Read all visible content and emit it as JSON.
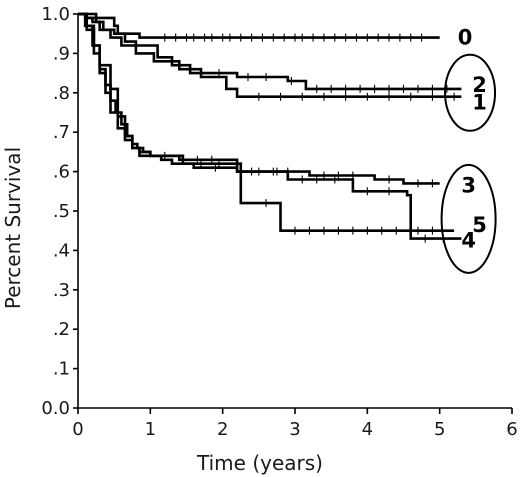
{
  "chart_data": {
    "type": "line",
    "title": "",
    "xlabel": "Time (years)",
    "ylabel": "Percent Survival",
    "xlim": [
      0,
      6
    ],
    "ylim": [
      0,
      1
    ],
    "x_ticks": [
      0,
      1,
      2,
      3,
      4,
      5,
      6
    ],
    "x_tick_labels": [
      "0",
      "1",
      "2",
      "3",
      "4",
      "5",
      "6"
    ],
    "y_ticks": [
      0,
      0.1,
      0.2,
      0.3,
      0.4,
      0.5,
      0.6,
      0.7,
      0.8,
      0.9,
      1.0
    ],
    "y_tick_labels": [
      "0.0",
      ".1",
      ".2",
      ".3",
      ".4",
      ".5",
      ".6",
      ".7",
      ".8",
      ".9",
      "1.0"
    ],
    "grid": false,
    "step": true,
    "series": [
      {
        "name": "0",
        "x": [
          0,
          0.25,
          0.5,
          0.55,
          0.85,
          5.0
        ],
        "y": [
          1.0,
          0.99,
          0.97,
          0.95,
          0.94,
          0.94
        ],
        "censor_x": [
          1.2,
          1.35,
          1.5,
          1.6,
          1.75,
          1.85,
          2.0,
          2.1,
          2.25,
          2.4,
          2.55,
          2.7,
          2.85,
          3.0,
          3.1,
          3.25,
          3.4,
          3.55,
          3.7,
          3.85,
          4.0,
          4.15,
          4.3,
          4.45,
          4.6,
          4.75
        ]
      },
      {
        "name": "1",
        "x": [
          0,
          0.12,
          0.2,
          0.3,
          0.45,
          0.6,
          0.8,
          1.05,
          1.4,
          1.7,
          2.05,
          2.2,
          5.3
        ],
        "y": [
          1.0,
          0.99,
          0.98,
          0.96,
          0.94,
          0.92,
          0.9,
          0.88,
          0.86,
          0.84,
          0.81,
          0.79,
          0.79
        ],
        "censor_x": [
          2.5,
          2.8,
          3.1,
          3.4,
          3.7,
          4.0,
          4.3,
          4.6,
          4.9,
          5.2
        ]
      },
      {
        "name": "2",
        "x": [
          0,
          0.1,
          0.25,
          0.35,
          0.5,
          0.65,
          0.8,
          1.1,
          1.3,
          1.55,
          2.2,
          2.9,
          3.15,
          5.3
        ],
        "y": [
          1.0,
          0.99,
          0.98,
          0.96,
          0.95,
          0.93,
          0.92,
          0.89,
          0.87,
          0.85,
          0.84,
          0.83,
          0.81,
          0.81
        ],
        "censor_x": [
          1.7,
          1.95,
          2.35,
          2.6,
          2.95,
          3.3,
          3.5,
          3.7,
          3.9,
          4.1,
          4.3,
          4.5,
          4.7,
          4.9,
          5.1
        ]
      },
      {
        "name": "3",
        "x": [
          0,
          0.12,
          0.22,
          0.3,
          0.38,
          0.45,
          0.52,
          0.6,
          0.68,
          0.75,
          0.82,
          0.9,
          1.0,
          1.15,
          1.3,
          1.6,
          2.2,
          3.2,
          4.1,
          4.5,
          5.0
        ],
        "y": [
          1.0,
          0.96,
          0.9,
          0.85,
          0.82,
          0.78,
          0.75,
          0.72,
          0.69,
          0.67,
          0.66,
          0.65,
          0.64,
          0.63,
          0.62,
          0.61,
          0.6,
          0.59,
          0.58,
          0.57,
          0.57
        ],
        "censor_x": [
          1.9,
          2.4,
          2.7,
          2.9,
          3.4,
          3.6,
          3.8,
          4.3,
          4.7,
          4.9
        ]
      },
      {
        "name": "4",
        "x": [
          0,
          0.1,
          0.2,
          0.3,
          0.45,
          0.55,
          0.65,
          0.75,
          0.85,
          1.45,
          2.25,
          2.8,
          5.2
        ],
        "y": [
          1.0,
          0.97,
          0.92,
          0.87,
          0.81,
          0.74,
          0.69,
          0.66,
          0.64,
          0.62,
          0.52,
          0.45,
          0.45
        ],
        "censor_x": [
          1.7,
          1.95,
          2.6,
          3.0,
          3.2,
          3.4,
          3.6,
          3.8,
          4.0,
          4.2,
          4.4,
          4.7,
          4.9
        ]
      },
      {
        "name": "5",
        "x": [
          0,
          0.12,
          0.22,
          0.3,
          0.38,
          0.45,
          0.55,
          0.65,
          0.75,
          0.85,
          1.0,
          1.4,
          2.2,
          2.9,
          3.8,
          4.55,
          4.6,
          5.3
        ],
        "y": [
          1.0,
          0.97,
          0.92,
          0.86,
          0.8,
          0.75,
          0.71,
          0.68,
          0.66,
          0.65,
          0.64,
          0.63,
          0.6,
          0.58,
          0.55,
          0.54,
          0.43,
          0.43
        ],
        "censor_x": [
          1.2,
          1.65,
          1.85,
          2.5,
          2.75,
          3.1,
          3.3,
          3.55,
          4.0,
          4.3,
          4.8,
          5.05
        ]
      }
    ],
    "annotations": [
      "0",
      "2",
      "1",
      "3",
      "5",
      "4"
    ]
  }
}
